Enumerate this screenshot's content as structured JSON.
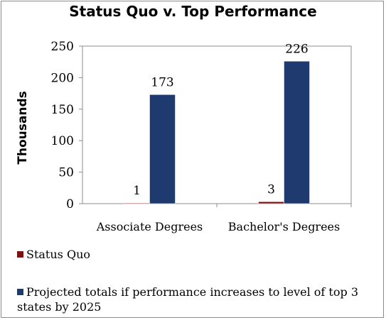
{
  "chart_data": {
    "type": "bar",
    "title": "Status Quo v. Top Performance",
    "ylabel": "Thousands",
    "xlabel": "",
    "ylim": [
      0,
      250
    ],
    "yticks": [
      0,
      50,
      100,
      150,
      200,
      250
    ],
    "grid": false,
    "legend_position": "bottom",
    "categories": [
      "Associate Degrees",
      "Bachelor's Degrees"
    ],
    "series": [
      {
        "name": "Status Quo",
        "color": "#7b1111",
        "values": [
          1,
          3
        ],
        "labels": [
          "1",
          "3"
        ]
      },
      {
        "name": "Projected totals if performance increases to level of top 3 states by 2025",
        "color": "#1f3a6e",
        "values": [
          173,
          226
        ],
        "labels": [
          "173",
          "226"
        ]
      }
    ]
  }
}
